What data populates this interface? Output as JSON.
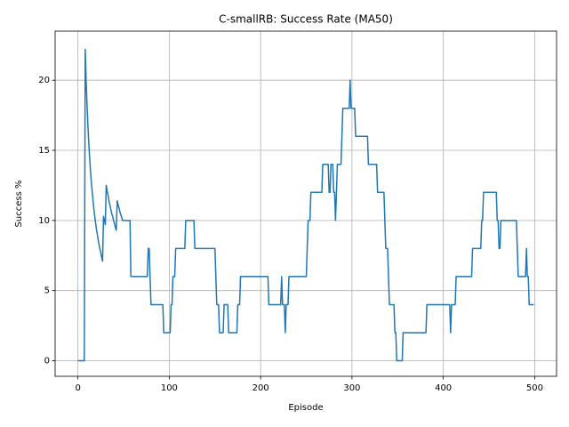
{
  "chart_data": {
    "type": "line",
    "title": "C-smallRB: Success Rate (MA50)",
    "xlabel": "Episode",
    "ylabel": "Success %",
    "xlim": [
      -24.95,
      523.95
    ],
    "ylim": [
      -1.11,
      23.5
    ],
    "xticks": [
      0,
      100,
      200,
      300,
      400,
      500
    ],
    "yticks": [
      0,
      5,
      10,
      15,
      20
    ],
    "grid": true,
    "series": [
      {
        "color": "#1f77b4",
        "x": [
          0,
          7,
          8,
          9,
          10,
          11,
          12,
          13,
          14,
          15,
          16,
          17,
          18,
          19,
          20,
          21,
          22,
          23,
          24,
          25,
          26,
          27,
          28,
          29,
          30,
          31,
          32,
          33,
          34,
          35,
          36,
          37,
          38,
          39,
          40,
          41,
          42,
          43,
          44,
          45,
          46,
          47,
          48,
          49,
          50,
          57,
          58,
          76,
          77,
          78,
          79,
          80,
          93,
          94,
          101,
          102,
          103,
          104,
          106,
          107,
          117,
          118,
          127,
          128,
          150,
          151,
          152,
          154,
          155,
          159,
          160,
          164,
          165,
          174,
          175,
          177,
          178,
          208,
          209,
          222,
          223,
          224,
          226,
          227,
          228,
          230,
          231,
          250,
          251,
          252,
          254,
          255,
          267,
          268,
          274,
          275,
          276,
          277,
          279,
          280,
          281,
          282,
          283,
          284,
          288,
          289,
          290,
          297,
          298,
          299,
          303,
          304,
          317,
          318,
          327,
          328,
          335,
          336,
          337,
          339,
          340,
          341,
          346,
          347,
          348,
          349,
          355,
          356,
          381,
          382,
          407,
          408,
          409,
          413,
          414,
          431,
          432,
          441,
          442,
          443,
          444,
          458,
          459,
          460,
          461,
          462,
          463,
          480,
          481,
          482,
          490,
          491,
          492,
          493,
          494,
          499
        ],
        "values": [
          0,
          0,
          22.2,
          20,
          18.2,
          16.7,
          15.4,
          14.3,
          13.3,
          12.5,
          11.8,
          11.1,
          10.5,
          10,
          9.5,
          9.1,
          8.7,
          8.3,
          8,
          7.7,
          7.4,
          7.1,
          10.3,
          10,
          9.7,
          12.5,
          12.1,
          11.8,
          11.4,
          11.1,
          10.8,
          10.5,
          10.3,
          10,
          9.8,
          9.5,
          9.3,
          11.4,
          11.1,
          10.9,
          10.6,
          10.4,
          10.2,
          10,
          10,
          10,
          6,
          6,
          8,
          8,
          6,
          4,
          4,
          2,
          2,
          4,
          4,
          6,
          6,
          8,
          8,
          10,
          10,
          8,
          8,
          6,
          4,
          4,
          2,
          2,
          4,
          4,
          2,
          2,
          4,
          4,
          6,
          6,
          4,
          4,
          6,
          4,
          4,
          2,
          4,
          4,
          6,
          6,
          8,
          10,
          10,
          12,
          12,
          14,
          14,
          12,
          12,
          14,
          14,
          12,
          12,
          10,
          12,
          14,
          14,
          16,
          18,
          18,
          20,
          18,
          18,
          16,
          16,
          14,
          14,
          12,
          12,
          10,
          8,
          8,
          6,
          4,
          4,
          2,
          2,
          0,
          0,
          2,
          2,
          4,
          4,
          2,
          4,
          4,
          6,
          6,
          8,
          8,
          10,
          10,
          12,
          12,
          10,
          10,
          8,
          8,
          10,
          10,
          8,
          6,
          6,
          8,
          6,
          6,
          4,
          4
        ]
      }
    ]
  }
}
